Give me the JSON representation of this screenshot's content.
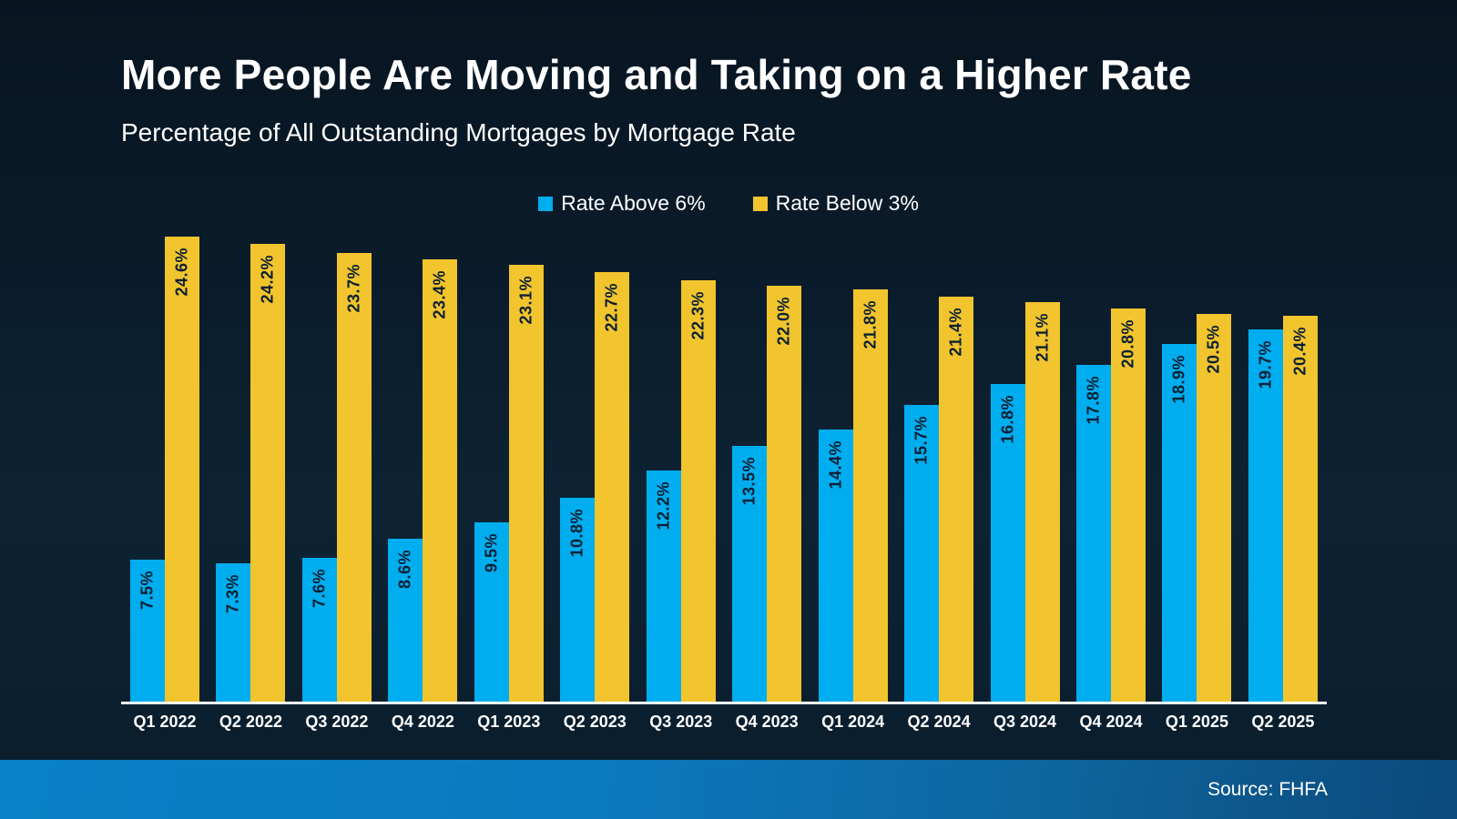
{
  "chart_data": {
    "type": "bar",
    "title": "More People Are Moving and Taking on a Higher Rate",
    "subtitle": "Percentage of All Outstanding Mortgages by Mortgage Rate",
    "categories": [
      "Q1 2022",
      "Q2 2022",
      "Q3 2022",
      "Q4 2022",
      "Q1 2023",
      "Q2 2023",
      "Q3 2023",
      "Q4 2023",
      "Q1 2024",
      "Q2 2024",
      "Q3 2024",
      "Q4 2024",
      "Q1 2025",
      "Q2 2025"
    ],
    "series": [
      {
        "name": "Rate Above 6%",
        "color": "#00ADEF",
        "values": [
          7.5,
          7.3,
          7.6,
          8.6,
          9.5,
          10.8,
          12.2,
          13.5,
          14.4,
          15.7,
          16.8,
          17.8,
          18.9,
          19.7
        ],
        "labels": [
          "7.5%",
          "7.3%",
          "7.6%",
          "8.6%",
          "9.5%",
          "10.8%",
          "12.2%",
          "13.5%",
          "14.4%",
          "15.7%",
          "16.8%",
          "17.8%",
          "18.9%",
          "19.7%"
        ]
      },
      {
        "name": "Rate Below 3%",
        "color": "#F2C42D",
        "values": [
          24.6,
          24.2,
          23.7,
          23.4,
          23.1,
          22.7,
          22.3,
          22.0,
          21.8,
          21.4,
          21.1,
          20.8,
          20.5,
          20.4
        ],
        "labels": [
          "24.6%",
          "24.2%",
          "23.7%",
          "23.4%",
          "23.1%",
          "22.7%",
          "22.3%",
          "22.0%",
          "21.8%",
          "21.4%",
          "21.1%",
          "20.8%",
          "20.5%",
          "20.4%"
        ]
      }
    ],
    "ylim": [
      0,
      25.5
    ],
    "grid": false,
    "legend_position": "top-center",
    "value_labels": "inside-top-rotated-90ccw",
    "xlabel": "",
    "ylabel": ""
  },
  "footer": {
    "source": "Source: FHFA"
  },
  "colors": {
    "bar_value_label": "#0B2033",
    "axis_line": "#FFFFFF",
    "text": "#FFFFFF",
    "background": "#0A1D2C",
    "footer_left": "#0A80C8",
    "footer_right": "#0B4A7B"
  }
}
